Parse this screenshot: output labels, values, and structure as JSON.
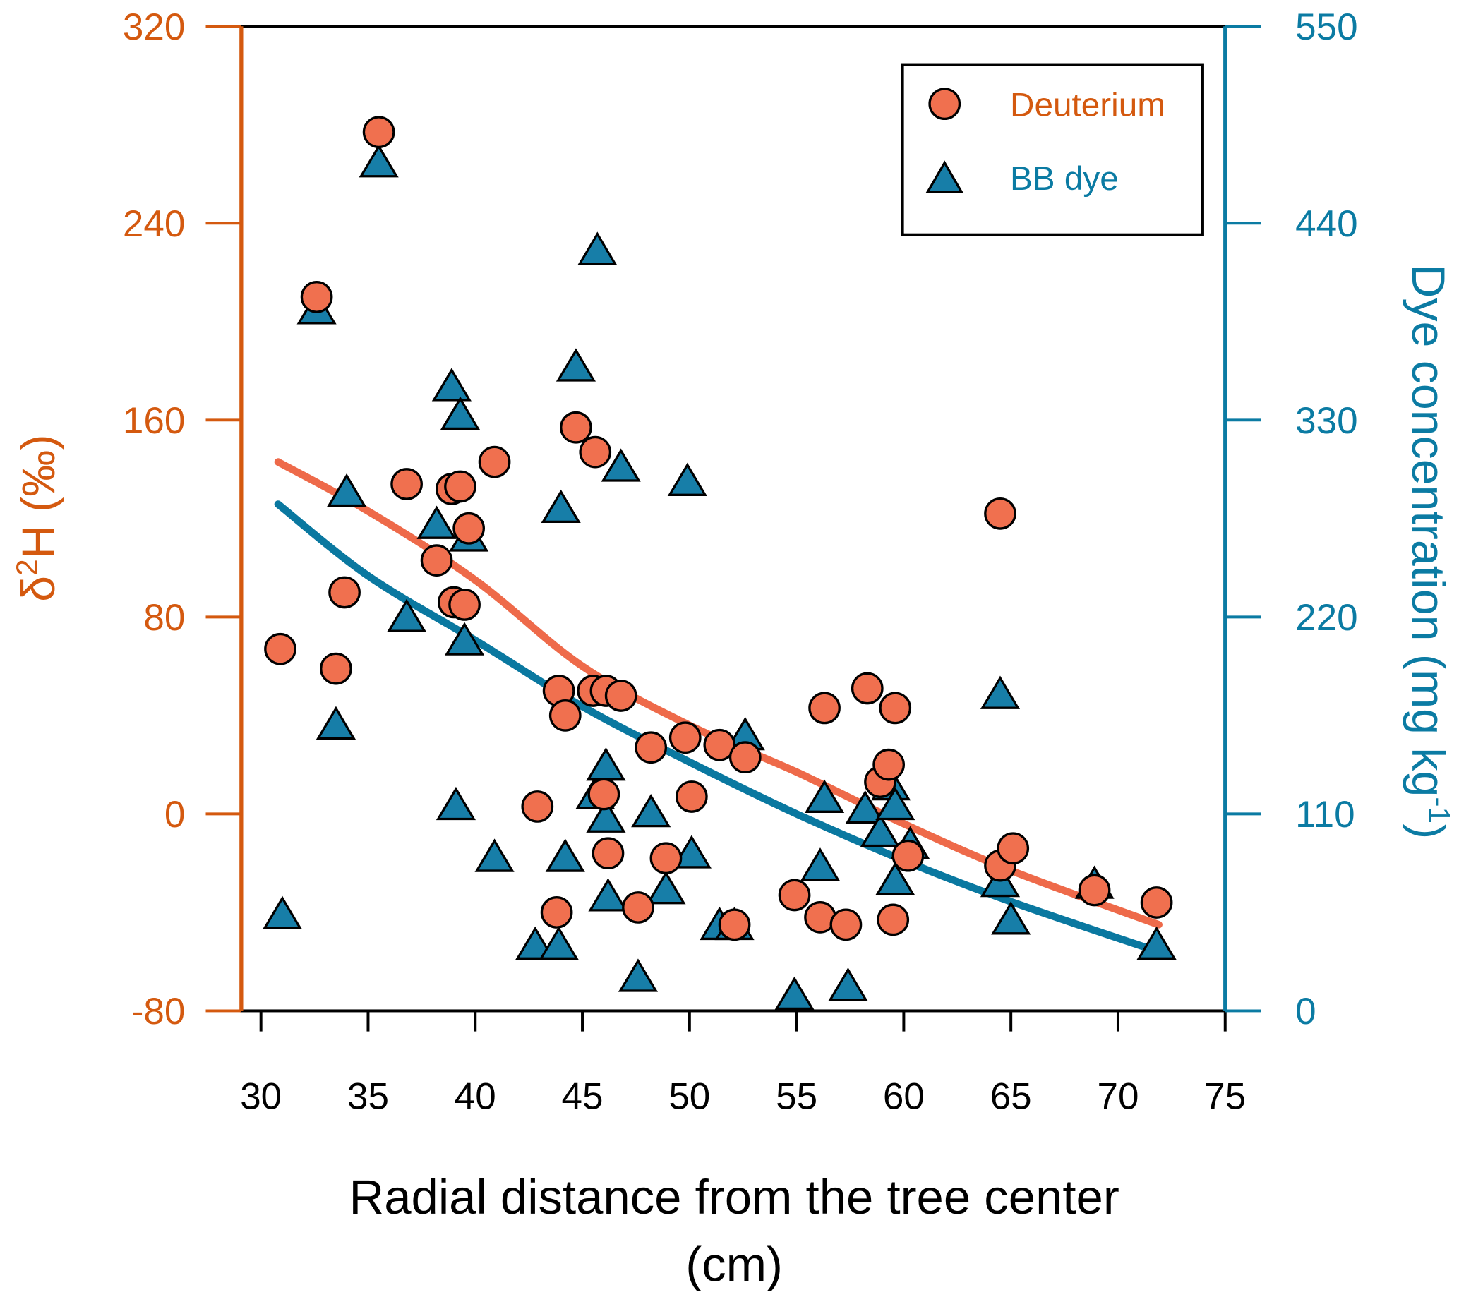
{
  "chart_data": {
    "type": "scatter",
    "xlabel": "Radial distance from the tree center",
    "xlabel_unit": "(cm)",
    "ylabel_left": "δ2H (‰)",
    "ylabel_right": "Dye concentration (mg kg-1)",
    "xlim": [
      30,
      75
    ],
    "ylim_left": [
      -80,
      320
    ],
    "ylim_right": [
      0,
      550
    ],
    "xticks": [
      "30",
      "35",
      "40",
      "45",
      "50",
      "55",
      "60",
      "65",
      "70",
      "75"
    ],
    "yticks_left": [
      "-80",
      "0",
      "80",
      "160",
      "240",
      "320"
    ],
    "yticks_right": [
      "0",
      "110",
      "220",
      "330",
      "440",
      "550"
    ],
    "grid": false,
    "legend_position": "top-right",
    "colors": {
      "left_axis": "#D4590F",
      "right_axis": "#0B7BA3",
      "deuterium_fill": "#F0704F",
      "deuterium_curve": "#EE6A4A",
      "dye_fill": "#177EA8",
      "dye_curve": "#0A78A0"
    },
    "series": [
      {
        "name": "Deuterium",
        "axis": "left",
        "marker": "circle",
        "points": [
          [
            30.9,
            67
          ],
          [
            32.6,
            210
          ],
          [
            35.5,
            277
          ],
          [
            33.5,
            59
          ],
          [
            33.9,
            90
          ],
          [
            36.8,
            134
          ],
          [
            38.2,
            103
          ],
          [
            38.9,
            132
          ],
          [
            39.3,
            133
          ],
          [
            39.0,
            86
          ],
          [
            39.5,
            85
          ],
          [
            39.7,
            116
          ],
          [
            40.9,
            143
          ],
          [
            42.9,
            3
          ],
          [
            43.9,
            50
          ],
          [
            44.2,
            40
          ],
          [
            43.8,
            -40
          ],
          [
            44.7,
            157
          ],
          [
            45.6,
            147
          ],
          [
            45.5,
            50
          ],
          [
            46.1,
            50
          ],
          [
            46.8,
            48
          ],
          [
            46.0,
            8
          ],
          [
            46.2,
            -16
          ],
          [
            47.6,
            -38
          ],
          [
            48.2,
            27
          ],
          [
            48.9,
            -18
          ],
          [
            49.8,
            31
          ],
          [
            50.1,
            7
          ],
          [
            51.4,
            28
          ],
          [
            52.1,
            -45
          ],
          [
            52.6,
            23
          ],
          [
            54.9,
            -33
          ],
          [
            56.1,
            -42
          ],
          [
            56.3,
            43
          ],
          [
            57.3,
            -45
          ],
          [
            58.3,
            51
          ],
          [
            58.9,
            13
          ],
          [
            59.3,
            20
          ],
          [
            59.5,
            -43
          ],
          [
            59.6,
            43
          ],
          [
            60.2,
            -17
          ],
          [
            64.5,
            122
          ],
          [
            64.5,
            -21
          ],
          [
            65.1,
            -14
          ],
          [
            68.9,
            -31
          ],
          [
            71.8,
            -36
          ]
        ],
        "fit": [
          [
            30.8,
            143
          ],
          [
            35,
            123
          ],
          [
            40,
            95
          ],
          [
            45,
            60
          ],
          [
            50,
            36
          ],
          [
            55,
            17
          ],
          [
            60,
            -4
          ],
          [
            65,
            -23
          ],
          [
            71.9,
            -45
          ]
        ]
      },
      {
        "name": "BB dye",
        "axis": "right",
        "marker": "triangle",
        "points": [
          [
            31.0,
            53
          ],
          [
            32.6,
            391
          ],
          [
            35.5,
            473
          ],
          [
            33.5,
            159
          ],
          [
            34.0,
            289
          ],
          [
            36.8,
            219
          ],
          [
            38.2,
            271
          ],
          [
            38.9,
            348
          ],
          [
            39.3,
            332
          ],
          [
            39.1,
            114
          ],
          [
            39.5,
            206
          ],
          [
            39.7,
            264
          ],
          [
            40.9,
            85
          ],
          [
            42.8,
            36
          ],
          [
            44.0,
            280
          ],
          [
            44.2,
            85
          ],
          [
            43.9,
            36
          ],
          [
            44.7,
            359
          ],
          [
            45.7,
            424
          ],
          [
            45.6,
            120
          ],
          [
            46.1,
            136
          ],
          [
            46.1,
            107
          ],
          [
            46.2,
            63
          ],
          [
            46.8,
            303
          ],
          [
            47.6,
            18
          ],
          [
            48.2,
            110
          ],
          [
            48.9,
            67
          ],
          [
            49.9,
            295
          ],
          [
            50.1,
            87
          ],
          [
            51.4,
            47
          ],
          [
            52.1,
            47
          ],
          [
            52.6,
            153
          ],
          [
            54.9,
            8
          ],
          [
            56.1,
            80
          ],
          [
            56.3,
            118
          ],
          [
            57.4,
            13
          ],
          [
            58.2,
            112
          ],
          [
            58.9,
            99
          ],
          [
            59.4,
            125
          ],
          [
            59.6,
            72
          ],
          [
            59.6,
            114
          ],
          [
            60.3,
            92
          ],
          [
            64.5,
            176
          ],
          [
            64.5,
            71
          ],
          [
            65.0,
            50
          ],
          [
            68.9,
            70
          ],
          [
            71.8,
            36
          ]
        ],
        "fit": [
          [
            30.8,
            283
          ],
          [
            35,
            243
          ],
          [
            40,
            207
          ],
          [
            45,
            170
          ],
          [
            50,
            139
          ],
          [
            55,
            110
          ],
          [
            60,
            84
          ],
          [
            65,
            61
          ],
          [
            71.9,
            33
          ]
        ]
      }
    ]
  }
}
